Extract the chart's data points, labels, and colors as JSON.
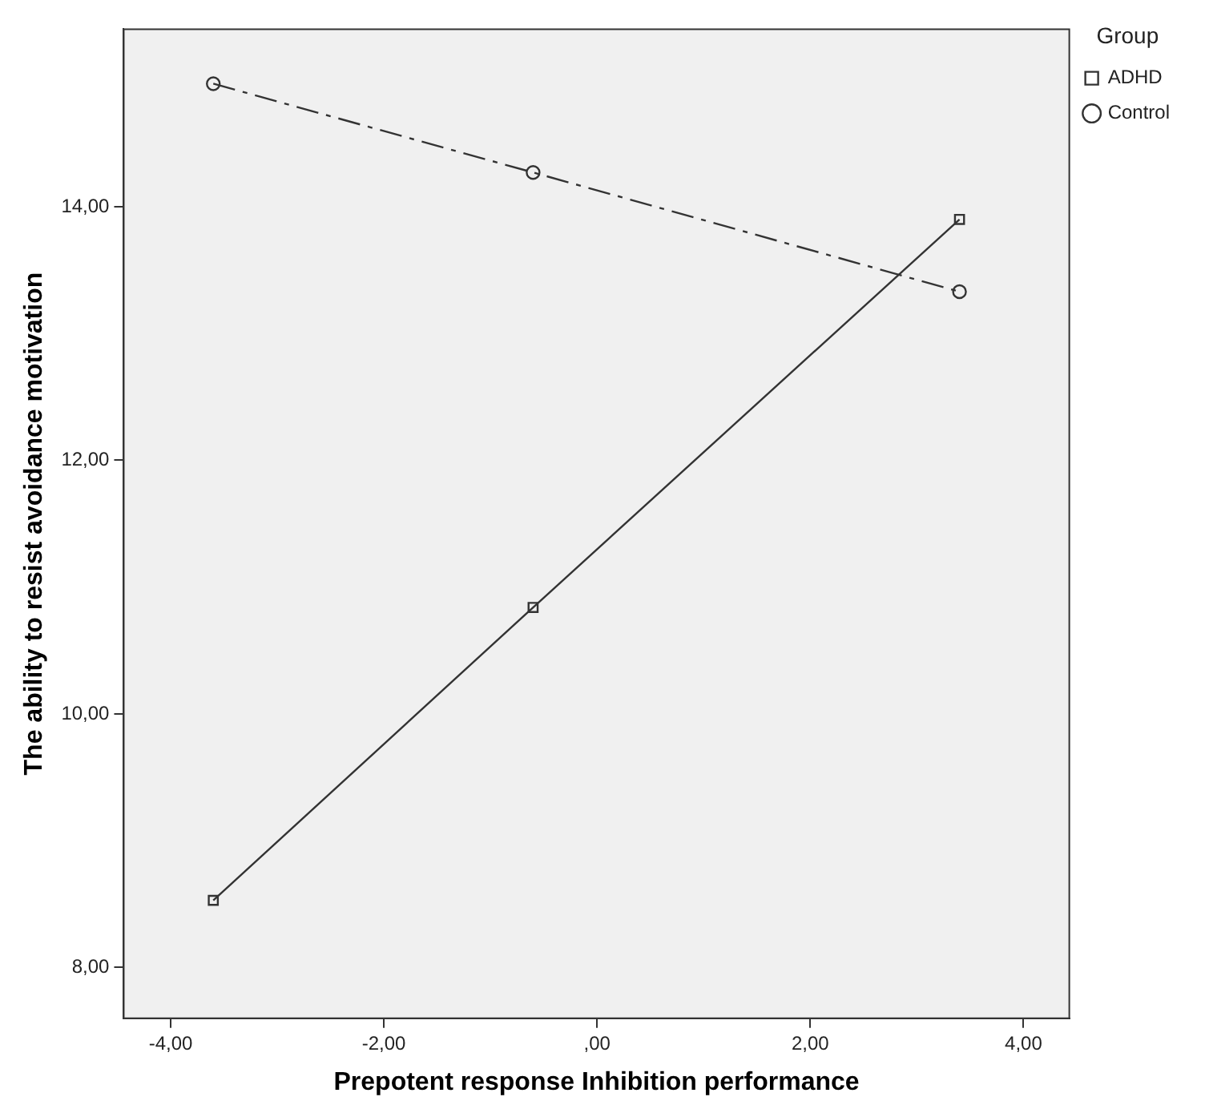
{
  "chart_data": {
    "type": "line",
    "xlabel": "Prepotent response Inhibition performance",
    "ylabel": "The ability to resist avoidance motivation",
    "legend_title": "Group",
    "x": [
      -3.6,
      -0.6,
      3.4
    ],
    "series": [
      {
        "name": "ADHD",
        "color": "#333333",
        "values": [
          8.53,
          10.84,
          13.9
        ],
        "marker": "square",
        "line_style": "solid"
      },
      {
        "name": "Control",
        "color": "#333333",
        "values": [
          14.97,
          14.27,
          13.33
        ],
        "marker": "circle",
        "line_style": "dashed"
      }
    ],
    "xlim": [
      -4.44,
      4.43
    ],
    "xticks": [
      {
        "value": -4,
        "label": "-4,00"
      },
      {
        "value": -2,
        "label": "-2,00"
      },
      {
        "value": 0,
        "label": ",00"
      },
      {
        "value": 2,
        "label": "2,00"
      },
      {
        "value": 4,
        "label": "4,00"
      }
    ],
    "ylim": [
      7.6,
      15.4
    ],
    "yticks": [
      {
        "value": 8,
        "label": "8,00"
      },
      {
        "value": 10,
        "label": "10,00"
      },
      {
        "value": 12,
        "label": "12,00"
      },
      {
        "value": 14,
        "label": "14,00"
      }
    ],
    "grid": false,
    "legend": "top right"
  }
}
